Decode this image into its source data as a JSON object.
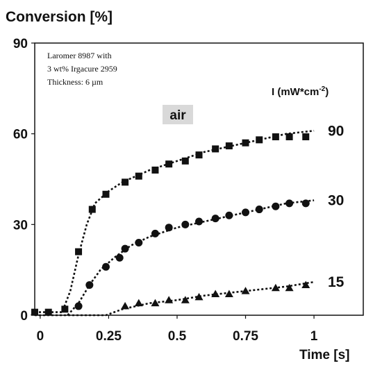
{
  "chart_data": {
    "type": "scatter",
    "ylabel": "Conversion [%]",
    "xlabel": "Time [s]",
    "xlim": [
      -0.02,
      1.18
    ],
    "ylim": [
      0,
      90
    ],
    "xticks": [
      0,
      0.25,
      0.5,
      0.75,
      1
    ],
    "xtick_labels": [
      "0",
      "0.25",
      "0.5",
      "0.75",
      "1"
    ],
    "yticks": [
      0,
      30,
      60,
      90
    ],
    "ytick_labels": [
      "0",
      "30",
      "60",
      "90"
    ],
    "grid": false,
    "annotation_lines": [
      "Laromer 8987 with",
      "3 wt% Irgacure 2959",
      "Thickness: 6 µm"
    ],
    "air_label": "air",
    "intensity_label": "I (mW*cm",
    "intensity_label_sup": "-2",
    "intensity_label_end": ")",
    "series": [
      {
        "name": "90",
        "marker": "square",
        "points": [
          [
            -0.02,
            1
          ],
          [
            0.03,
            1
          ],
          [
            0.09,
            2
          ],
          [
            0.14,
            21
          ],
          [
            0.19,
            35
          ],
          [
            0.24,
            40
          ],
          [
            0.31,
            44
          ],
          [
            0.36,
            46
          ],
          [
            0.42,
            48
          ],
          [
            0.47,
            50
          ],
          [
            0.53,
            51
          ],
          [
            0.58,
            53
          ],
          [
            0.64,
            55
          ],
          [
            0.69,
            56
          ],
          [
            0.75,
            57
          ],
          [
            0.8,
            58
          ],
          [
            0.86,
            59
          ],
          [
            0.91,
            59
          ],
          [
            0.97,
            59
          ]
        ],
        "fit": [
          [
            -0.02,
            1
          ],
          [
            0.08,
            1
          ],
          [
            0.11,
            8
          ],
          [
            0.14,
            20
          ],
          [
            0.17,
            30
          ],
          [
            0.2,
            37
          ],
          [
            0.25,
            41
          ],
          [
            0.3,
            44
          ],
          [
            0.4,
            48
          ],
          [
            0.5,
            51
          ],
          [
            0.6,
            54
          ],
          [
            0.7,
            56
          ],
          [
            0.8,
            58
          ],
          [
            0.9,
            60
          ],
          [
            1.0,
            61
          ]
        ]
      },
      {
        "name": "30",
        "marker": "circle",
        "points": [
          [
            0.14,
            3
          ],
          [
            0.18,
            10
          ],
          [
            0.24,
            16
          ],
          [
            0.29,
            19
          ],
          [
            0.31,
            22
          ],
          [
            0.36,
            24
          ],
          [
            0.42,
            27
          ],
          [
            0.47,
            29
          ],
          [
            0.53,
            30
          ],
          [
            0.58,
            31
          ],
          [
            0.64,
            32
          ],
          [
            0.69,
            33
          ],
          [
            0.75,
            34
          ],
          [
            0.8,
            35
          ],
          [
            0.86,
            36
          ],
          [
            0.91,
            37
          ],
          [
            0.97,
            37
          ]
        ],
        "fit": [
          [
            0.1,
            0
          ],
          [
            0.14,
            4
          ],
          [
            0.18,
            10
          ],
          [
            0.22,
            15
          ],
          [
            0.27,
            19
          ],
          [
            0.33,
            23
          ],
          [
            0.4,
            26
          ],
          [
            0.5,
            29
          ],
          [
            0.6,
            31
          ],
          [
            0.7,
            33
          ],
          [
            0.8,
            35
          ],
          [
            0.9,
            37
          ],
          [
            1.0,
            38
          ]
        ]
      },
      {
        "name": "15",
        "marker": "triangle",
        "points": [
          [
            -0.02,
            1
          ],
          [
            0.31,
            3
          ],
          [
            0.36,
            4
          ],
          [
            0.42,
            4
          ],
          [
            0.47,
            5
          ],
          [
            0.53,
            5
          ],
          [
            0.58,
            6
          ],
          [
            0.64,
            7
          ],
          [
            0.69,
            7
          ],
          [
            0.75,
            8
          ],
          [
            0.86,
            9
          ],
          [
            0.91,
            9
          ],
          [
            0.97,
            10
          ]
        ],
        "fit": [
          [
            -0.02,
            0
          ],
          [
            0.24,
            0
          ],
          [
            0.3,
            2
          ],
          [
            0.4,
            4
          ],
          [
            0.5,
            5
          ],
          [
            0.6,
            6.5
          ],
          [
            0.7,
            7.5
          ],
          [
            0.8,
            8.5
          ],
          [
            0.9,
            9.5
          ],
          [
            1.0,
            11
          ]
        ]
      }
    ]
  }
}
